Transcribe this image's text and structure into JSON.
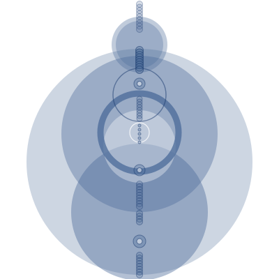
{
  "figure": {
    "background": "#ffffff",
    "palette": {
      "light": "#b3c0d4",
      "mid": "#4a6a98",
      "dark": "#1a3a6e"
    }
  }
}
